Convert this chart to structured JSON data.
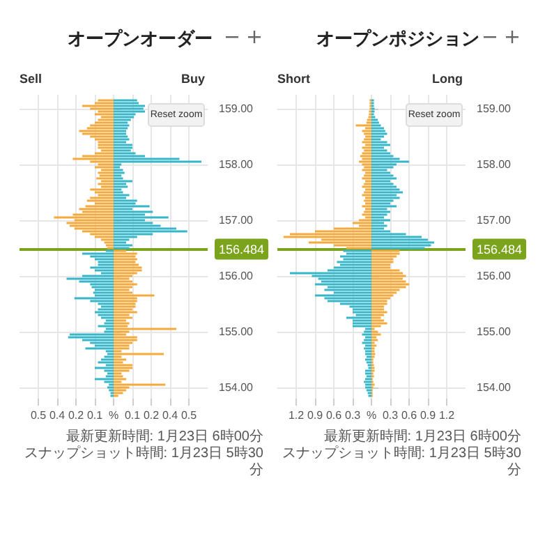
{
  "chart_data": [
    {
      "type": "bar",
      "title": "オープンオーダー",
      "orientation": "horizontal",
      "grid": true,
      "annotations": [
        "Sell",
        "Buy",
        "Reset zoom",
        "最新更新時間: 1月23日 6時00分",
        "スナップショット時間: 1月23日 5時30分"
      ],
      "xlim": [
        -0.6,
        0.6
      ],
      "xticks": [
        {
          "value": -0.48,
          "label": "0.5"
        },
        {
          "value": -0.36,
          "label": "0.4"
        },
        {
          "value": -0.24,
          "label": "0.2"
        },
        {
          "value": -0.12,
          "label": "0.1"
        },
        {
          "value": 0,
          "label": "%"
        },
        {
          "value": 0.12,
          "label": "0.1"
        },
        {
          "value": 0.24,
          "label": "0.2"
        },
        {
          "value": 0.36,
          "label": "0.4"
        },
        {
          "value": 0.48,
          "label": "0.5"
        }
      ],
      "ylim": [
        153.8,
        159.25
      ],
      "yticks": [
        {
          "value": 154,
          "label": "154.00"
        },
        {
          "value": 155,
          "label": "155.00"
        },
        {
          "value": 156,
          "label": "156.00"
        },
        {
          "value": 157,
          "label": "157.00"
        },
        {
          "value": 158,
          "label": "158.00"
        },
        {
          "value": 159,
          "label": "159.00"
        }
      ],
      "ref_lines": [
        {
          "axis": "y",
          "value": 156.484,
          "label": "156.484",
          "color": "#7ba31c"
        }
      ],
      "series": [
        {
          "color": "#35b6c9",
          "x": [
            159.15,
            159.1,
            159.05,
            159,
            158.95,
            158.9,
            158.85,
            158.8,
            158.75,
            158.7,
            158.65,
            158.6,
            158.55,
            158.5,
            158.45,
            158.4,
            158.35,
            158.3,
            158.25,
            158.2,
            158.15,
            158.1,
            158.05,
            158,
            157.95,
            157.9,
            157.85,
            157.8,
            157.75,
            157.7,
            157.65,
            157.6,
            157.55,
            157.5,
            157.45,
            157.4,
            157.35,
            157.3,
            157.25,
            157.2,
            157.15,
            157.1,
            157.05,
            157,
            156.95,
            156.9,
            156.85,
            156.8,
            156.75,
            156.7,
            156.65,
            156.6,
            156.55,
            156.5
          ],
          "values": [
            0.15,
            0.16,
            0.2,
            0.19,
            0.2,
            0.14,
            0.13,
            0.11,
            0.09,
            0.1,
            0.09,
            0.08,
            0.08,
            0.09,
            0.1,
            0.08,
            0.12,
            0.12,
            0.11,
            0.14,
            0.2,
            0.42,
            0.56,
            0.05,
            0.04,
            0.06,
            0.07,
            0.05,
            0.06,
            0.12,
            0.08,
            0.09,
            0.05,
            0.06,
            0.1,
            0.08,
            0.15,
            0.14,
            0.23,
            0.12,
            0.25,
            0.2,
            0.35,
            0.2,
            0.25,
            0.3,
            0.4,
            0.47,
            0.25,
            0.15,
            0.1,
            0.08,
            0.12,
            0.1
          ]
        },
        {
          "color": "#f4a93a",
          "x": [
            159.15,
            159.1,
            159.05,
            159,
            158.95,
            158.9,
            158.85,
            158.8,
            158.75,
            158.7,
            158.65,
            158.6,
            158.55,
            158.5,
            158.45,
            158.4,
            158.35,
            158.3,
            158.25,
            158.2,
            158.15,
            158.1,
            158.05,
            158,
            157.95,
            157.9,
            157.85,
            157.8,
            157.75,
            157.7,
            157.65,
            157.6,
            157.55,
            157.5,
            157.45,
            157.4,
            157.35,
            157.3,
            157.25,
            157.2,
            157.15,
            157.1,
            157.05,
            157,
            156.95,
            156.9,
            156.85,
            156.8,
            156.75,
            156.7,
            156.65,
            156.6,
            156.55,
            156.5
          ],
          "values": [
            -0.1,
            -0.12,
            -0.2,
            -0.15,
            -0.1,
            -0.12,
            -0.08,
            -0.1,
            -0.12,
            -0.15,
            -0.17,
            -0.22,
            -0.2,
            -0.15,
            -0.12,
            -0.1,
            -0.1,
            -0.1,
            -0.08,
            -0.12,
            -0.2,
            -0.26,
            -0.15,
            -0.1,
            -0.12,
            -0.08,
            -0.1,
            -0.09,
            -0.11,
            -0.08,
            -0.1,
            -0.08,
            -0.15,
            -0.12,
            -0.1,
            -0.15,
            -0.17,
            -0.12,
            -0.18,
            -0.22,
            -0.2,
            -0.26,
            -0.38,
            -0.25,
            -0.3,
            -0.28,
            -0.25,
            -0.2,
            -0.15,
            -0.12,
            -0.08,
            -0.06,
            -0.05,
            -0.04
          ]
        },
        {
          "color": "#35b6c9",
          "x": [
            156.45,
            156.4,
            156.35,
            156.3,
            156.25,
            156.2,
            156.15,
            156.1,
            156.05,
            156,
            155.95,
            155.9,
            155.85,
            155.8,
            155.75,
            155.7,
            155.65,
            155.6,
            155.55,
            155.5,
            155.45,
            155.4,
            155.35,
            155.3,
            155.25,
            155.2,
            155.15,
            155.1,
            155.05,
            155,
            154.95,
            154.9,
            154.85,
            154.8,
            154.75,
            154.7,
            154.65,
            154.6,
            154.55,
            154.5,
            154.45,
            154.4,
            154.35,
            154.3,
            154.25,
            154.2,
            154.15,
            154.1,
            154.05,
            154,
            153.95,
            153.9,
            153.85
          ],
          "values": [
            -0.05,
            -0.2,
            -0.15,
            -0.12,
            -0.1,
            -0.1,
            -0.15,
            -0.12,
            -0.08,
            -0.2,
            -0.3,
            -0.22,
            -0.15,
            -0.14,
            -0.12,
            -0.13,
            -0.12,
            -0.25,
            -0.15,
            -0.1,
            -0.08,
            -0.1,
            -0.12,
            -0.1,
            -0.08,
            -0.05,
            -0.06,
            -0.1,
            -0.05,
            -0.06,
            -0.28,
            -0.29,
            -0.2,
            -0.15,
            -0.12,
            -0.18,
            -0.05,
            -0.04,
            -0.06,
            -0.08,
            -0.1,
            -0.05,
            -0.12,
            -0.06,
            -0.04,
            -0.05,
            -0.12,
            -0.06,
            -0.03,
            -0.04,
            -0.03,
            -0.02,
            -0.02
          ]
        },
        {
          "color": "#f4a93a",
          "x": [
            156.45,
            156.4,
            156.35,
            156.3,
            156.25,
            156.2,
            156.15,
            156.1,
            156.05,
            156,
            155.95,
            155.9,
            155.85,
            155.8,
            155.75,
            155.7,
            155.65,
            155.6,
            155.55,
            155.5,
            155.45,
            155.4,
            155.35,
            155.3,
            155.25,
            155.2,
            155.15,
            155.1,
            155.05,
            155,
            154.95,
            154.9,
            154.85,
            154.8,
            154.75,
            154.7,
            154.65,
            154.6,
            154.55,
            154.5,
            154.45,
            154.4,
            154.35,
            154.3,
            154.25,
            154.2,
            154.15,
            154.1,
            154.05,
            154,
            153.95,
            153.9,
            153.85
          ],
          "values": [
            0.08,
            0.15,
            0.14,
            0.15,
            0.14,
            0.16,
            0.18,
            0.18,
            0.15,
            0.12,
            0.1,
            0.12,
            0.15,
            0.12,
            0.1,
            0.12,
            0.26,
            0.15,
            0.15,
            0.14,
            0.14,
            0.12,
            0.15,
            0.1,
            0.12,
            0.08,
            0.1,
            0.09,
            0.4,
            0.1,
            0.08,
            0.15,
            0.15,
            0.12,
            0.1,
            0.1,
            0.05,
            0.32,
            0.05,
            0.08,
            0.06,
            0.12,
            0.12,
            0.1,
            0.05,
            0.06,
            0.08,
            0.05,
            0.33,
            0.1,
            0.08,
            0.06,
            0.03
          ]
        }
      ]
    },
    {
      "type": "bar",
      "title": "オープンポジション",
      "orientation": "horizontal",
      "grid": true,
      "annotations": [
        "Short",
        "Long",
        "Reset zoom",
        "最新更新時間: 1月23日 6時00分",
        "スナップショット時間: 1月23日 5時30分"
      ],
      "xlim": [
        -1.5,
        1.5
      ],
      "xticks": [
        {
          "value": -1.2,
          "label": "1.2"
        },
        {
          "value": -0.9,
          "label": "0.9"
        },
        {
          "value": -0.6,
          "label": "0.6"
        },
        {
          "value": -0.3,
          "label": "0.3"
        },
        {
          "value": 0,
          "label": "%"
        },
        0.3,
        0.6,
        0.9,
        1.2
      ],
      "ylim": [
        153.8,
        159.25
      ],
      "yticks": [
        {
          "value": 154,
          "label": "154.00"
        },
        {
          "value": 155,
          "label": "155.00"
        },
        {
          "value": 156,
          "label": "156.00"
        },
        {
          "value": 157,
          "label": "157.00"
        },
        {
          "value": 158,
          "label": "158.00"
        },
        {
          "value": 159,
          "label": "159.00"
        }
      ],
      "ref_lines": [
        {
          "axis": "y",
          "value": 156.484,
          "label": "156.484",
          "color": "#7ba31c"
        }
      ],
      "series": [
        {
          "color": "#35b6c9",
          "x": [
            159.15,
            159.1,
            159.05,
            159,
            158.95,
            158.9,
            158.85,
            158.8,
            158.75,
            158.7,
            158.65,
            158.6,
            158.55,
            158.5,
            158.45,
            158.4,
            158.35,
            158.3,
            158.25,
            158.2,
            158.15,
            158.1,
            158.05,
            158,
            157.95,
            157.9,
            157.85,
            157.8,
            157.75,
            157.7,
            157.65,
            157.6,
            157.55,
            157.5,
            157.45,
            157.4,
            157.35,
            157.3,
            157.25,
            157.2,
            157.15,
            157.1,
            157.05,
            157,
            156.95,
            156.9,
            156.85,
            156.8,
            156.75,
            156.7,
            156.65,
            156.6,
            156.55,
            156.5
          ],
          "values": [
            0.04,
            0.04,
            0.04,
            0.05,
            0.05,
            0.04,
            0.06,
            0.1,
            0.12,
            0.15,
            0.2,
            0.22,
            0.25,
            0.2,
            0.15,
            0.25,
            0.3,
            0.2,
            0.25,
            0.3,
            0.35,
            0.45,
            0.6,
            0.4,
            0.35,
            0.25,
            0.3,
            0.35,
            0.4,
            0.3,
            0.35,
            0.4,
            0.45,
            0.5,
            0.4,
            0.45,
            0.35,
            0.3,
            0.4,
            0.25,
            0.3,
            0.25,
            0.2,
            0.3,
            0.2,
            0.25,
            0.2,
            0.3,
            0.55,
            0.8,
            0.9,
            1.0,
            0.95,
            0.85
          ]
        },
        {
          "color": "#f4a93a",
          "x": [
            159.15,
            159.1,
            159.05,
            159,
            158.95,
            158.9,
            158.85,
            158.8,
            158.75,
            158.7,
            158.65,
            158.6,
            158.55,
            158.5,
            158.45,
            158.4,
            158.35,
            158.3,
            158.25,
            158.2,
            158.15,
            158.1,
            158.05,
            158,
            157.95,
            157.9,
            157.85,
            157.8,
            157.75,
            157.7,
            157.65,
            157.6,
            157.55,
            157.5,
            157.45,
            157.4,
            157.35,
            157.3,
            157.25,
            157.2,
            157.15,
            157.1,
            157.05,
            157,
            156.95,
            156.9,
            156.85,
            156.8,
            156.75,
            156.7,
            156.65,
            156.6,
            156.55,
            156.5
          ],
          "values": [
            -0.03,
            -0.03,
            -0.03,
            -0.03,
            -0.04,
            -0.04,
            -0.05,
            -0.07,
            -0.08,
            -0.25,
            -0.1,
            -0.15,
            -0.12,
            -0.1,
            -0.12,
            -0.15,
            -0.1,
            -0.15,
            -0.12,
            -0.15,
            -0.18,
            -0.15,
            -0.2,
            -0.15,
            -0.12,
            -0.15,
            -0.1,
            -0.12,
            -0.15,
            -0.1,
            -0.12,
            -0.15,
            -0.1,
            -0.12,
            -0.15,
            -0.1,
            -0.12,
            -0.1,
            -0.15,
            -0.1,
            -0.12,
            -0.15,
            -0.1,
            -0.2,
            -0.3,
            -0.2,
            -0.6,
            -0.9,
            -1.3,
            -1.4,
            -0.8,
            -1.0,
            -0.6,
            -0.4
          ]
        },
        {
          "color": "#35b6c9",
          "x": [
            156.45,
            156.4,
            156.35,
            156.3,
            156.25,
            156.2,
            156.15,
            156.1,
            156.05,
            156,
            155.95,
            155.9,
            155.85,
            155.8,
            155.75,
            155.7,
            155.65,
            155.6,
            155.55,
            155.5,
            155.45,
            155.4,
            155.35,
            155.3,
            155.25,
            155.2,
            155.15,
            155.1,
            155.05,
            155,
            154.95,
            154.9,
            154.85,
            154.8,
            154.75,
            154.7,
            154.65,
            154.6,
            154.55,
            154.5,
            154.45,
            154.4,
            154.35,
            154.3,
            154.25,
            154.2,
            154.15,
            154.1,
            154.05,
            154,
            153.95,
            153.9,
            153.85
          ],
          "values": [
            -0.45,
            -0.4,
            -0.5,
            -0.45,
            -0.55,
            -0.5,
            -0.6,
            -0.7,
            -1.3,
            -0.95,
            -0.85,
            -0.8,
            -0.9,
            -0.7,
            -0.75,
            -0.6,
            -0.9,
            -0.75,
            -0.7,
            -0.5,
            -0.35,
            -0.3,
            -0.3,
            -0.25,
            -0.4,
            -0.3,
            -0.3,
            -0.3,
            -0.1,
            -0.12,
            -0.15,
            -0.1,
            -0.12,
            -0.15,
            -0.1,
            -0.12,
            -0.1,
            -0.1,
            -0.08,
            -0.1,
            -0.08,
            -0.06,
            -0.05,
            -0.1,
            -0.1,
            -0.08,
            -0.1,
            -0.12,
            -0.1,
            -0.1,
            -0.08,
            -0.06,
            -0.05
          ]
        },
        {
          "color": "#f4a93a",
          "x": [
            156.45,
            156.4,
            156.35,
            156.3,
            156.25,
            156.2,
            156.15,
            156.1,
            156.05,
            156,
            155.95,
            155.9,
            155.85,
            155.8,
            155.75,
            155.7,
            155.65,
            155.6,
            155.55,
            155.5,
            155.45,
            155.4,
            155.35,
            155.3,
            155.25,
            155.2,
            155.15,
            155.1,
            155.05,
            155,
            154.95,
            154.9,
            154.85,
            154.8,
            154.75,
            154.7,
            154.65,
            154.6,
            154.55,
            154.5,
            154.45,
            154.4,
            154.35,
            154.3,
            154.25,
            154.2,
            154.15,
            154.1,
            154.05,
            154,
            153.95,
            153.9,
            153.85
          ],
          "values": [
            0.45,
            0.45,
            0.4,
            0.35,
            0.35,
            0.3,
            0.3,
            0.45,
            0.5,
            0.55,
            0.5,
            0.55,
            0.6,
            0.55,
            0.45,
            0.4,
            0.35,
            0.3,
            0.25,
            0.25,
            0.2,
            0.2,
            0.25,
            0.2,
            0.15,
            0.2,
            0.25,
            0.15,
            0.05,
            0.1,
            0.15,
            0.08,
            0.1,
            0.05,
            0.08,
            0.05,
            0.05,
            0.06,
            0.05,
            0.03,
            0.03,
            0.04,
            0.05,
            0.05,
            0.03,
            0.04,
            0.02,
            0.03,
            0.05,
            0.03,
            0.02,
            0.02,
            0.02
          ]
        }
      ]
    }
  ]
}
